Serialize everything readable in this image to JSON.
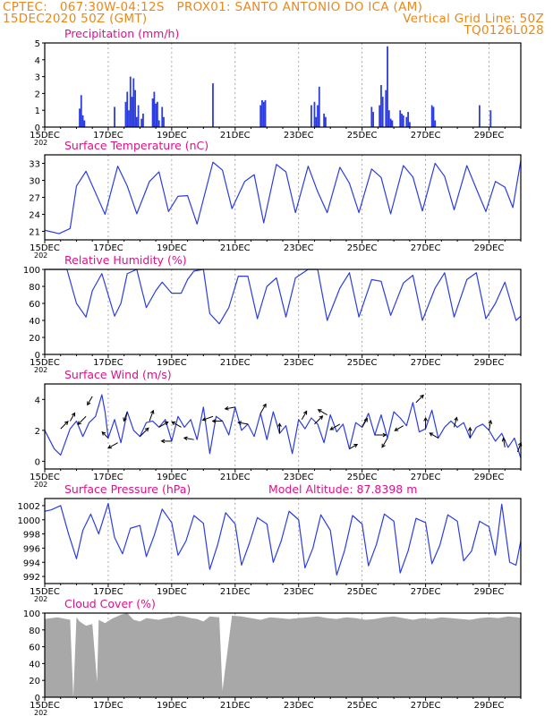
{
  "header": {
    "line1_left": "CPTEC:   067:30W-04:12S   PROX01: SANTO ANTONIO DO ICA (AM)",
    "line2_left": "15DEC2020 50Z (GMT)",
    "line2_right": "Vertical Grid Line: 50Z",
    "line3_right": "TQ0126L028"
  },
  "colors": {
    "header": "#e8891c",
    "panel_title": "#e0108a",
    "series": "#2b3de0",
    "cloud": "#a8a8a8",
    "grid": "#9a9a9a"
  },
  "x_axis": {
    "tick_labels": [
      "15DEC",
      "17DEC",
      "19DEC",
      "21DEC",
      "23DEC",
      "25DEC",
      "27DEC",
      "29DEC"
    ],
    "year_fragment": "202"
  },
  "chart_data": [
    {
      "type": "bar",
      "title": "Precipitation (mm/h)",
      "xlabel": "",
      "ylabel": "",
      "ylim": [
        0,
        5
      ],
      "yticks": [
        "0",
        "1",
        "2",
        "3",
        "4",
        "5"
      ],
      "x_unit": "days since 15DEC",
      "x": [
        1.1,
        1.15,
        1.2,
        1.25,
        2.2,
        2.55,
        2.6,
        2.65,
        2.7,
        2.75,
        2.8,
        2.85,
        2.9,
        2.95,
        3.05,
        3.1,
        3.4,
        3.45,
        3.5,
        3.55,
        3.6,
        3.7,
        3.75,
        5.3,
        6.8,
        6.85,
        6.9,
        6.95,
        8.4,
        8.5,
        8.55,
        8.6,
        8.65,
        8.8,
        8.85,
        10.3,
        10.35,
        10.55,
        10.6,
        10.65,
        10.75,
        10.8,
        10.85,
        10.9,
        10.95,
        11.2,
        11.25,
        11.3,
        11.4,
        11.45,
        11.5,
        12.2,
        12.25,
        12.3,
        13.7,
        14.05
      ],
      "values": [
        1.1,
        1.9,
        0.7,
        0.4,
        1.2,
        1.5,
        2.1,
        1.0,
        3.0,
        1.8,
        2.9,
        2.2,
        0.6,
        1.3,
        0.5,
        0.8,
        1.7,
        2.1,
        1.4,
        1.5,
        0.4,
        1.2,
        0.6,
        2.6,
        1.3,
        1.6,
        1.5,
        1.6,
        1.3,
        1.5,
        0.6,
        1.3,
        2.4,
        0.8,
        0.6,
        1.2,
        0.9,
        1.3,
        2.5,
        1.8,
        2.2,
        4.8,
        1.0,
        0.5,
        0.4,
        1.0,
        0.8,
        0.7,
        0.6,
        0.9,
        0.3,
        1.3,
        1.2,
        0.4,
        1.3,
        1.0
      ]
    },
    {
      "type": "line",
      "title": "Surface Temperature (nC)",
      "xlabel": "",
      "ylabel": "",
      "ylim": [
        19.5,
        34.5
      ],
      "yticks": [
        "21",
        "24",
        "27",
        "30",
        "33"
      ],
      "x_unit": "days since 15DEC",
      "x": [
        0.0,
        0.45,
        0.8,
        1.0,
        1.3,
        1.6,
        1.9,
        2.3,
        2.6,
        2.9,
        3.3,
        3.6,
        3.9,
        4.2,
        4.5,
        4.8,
        5.3,
        5.6,
        5.9,
        6.3,
        6.6,
        6.9,
        7.3,
        7.6,
        7.9,
        8.3,
        8.6,
        8.9,
        9.3,
        9.6,
        9.9,
        10.3,
        10.6,
        10.9,
        11.3,
        11.6,
        11.9,
        12.3,
        12.6,
        12.9,
        13.3,
        13.6,
        13.9,
        14.2,
        14.5,
        14.75,
        15.0
      ],
      "values": [
        21.2,
        20.6,
        21.5,
        29.0,
        31.6,
        27.8,
        24.0,
        32.5,
        29.0,
        24.1,
        29.8,
        31.5,
        24.5,
        27.2,
        27.3,
        22.3,
        33.2,
        31.8,
        25.0,
        29.8,
        31.0,
        22.5,
        32.8,
        31.5,
        24.3,
        32.5,
        28.0,
        24.3,
        32.3,
        29.5,
        24.3,
        32.0,
        30.5,
        24.1,
        32.6,
        30.6,
        24.6,
        33.0,
        30.7,
        24.8,
        32.6,
        28.5,
        24.5,
        29.8,
        28.8,
        25.2,
        33.5
      ]
    },
    {
      "type": "line",
      "title": "Relative Humidity (%)",
      "xlabel": "",
      "ylabel": "",
      "ylim": [
        0,
        100
      ],
      "yticks": [
        "0",
        "20",
        "40",
        "60",
        "80",
        "100"
      ],
      "x_unit": "days since 15DEC",
      "x": [
        0.0,
        0.4,
        0.7,
        1.0,
        1.3,
        1.5,
        1.8,
        2.2,
        2.4,
        2.6,
        2.9,
        3.2,
        3.5,
        3.7,
        4.0,
        4.3,
        4.5,
        4.7,
        5.0,
        5.2,
        5.5,
        5.8,
        6.1,
        6.4,
        6.7,
        7.0,
        7.3,
        7.6,
        7.9,
        8.3,
        8.6,
        8.9,
        9.3,
        9.6,
        9.9,
        10.3,
        10.6,
        10.9,
        11.3,
        11.6,
        11.9,
        12.3,
        12.6,
        12.9,
        13.3,
        13.6,
        13.9,
        14.2,
        14.5,
        14.85,
        15.0
      ],
      "values": [
        100,
        100,
        100,
        60,
        44,
        75,
        95,
        45,
        60,
        95,
        100,
        55,
        75,
        85,
        72,
        72,
        88,
        98,
        100,
        48,
        36,
        55,
        92,
        92,
        42,
        80,
        90,
        44,
        90,
        100,
        100,
        40,
        78,
        96,
        44,
        88,
        86,
        46,
        84,
        93,
        40,
        78,
        96,
        44,
        88,
        96,
        42,
        60,
        85,
        40,
        45
      ]
    },
    {
      "type": "line",
      "title": "Surface Wind (m/s)",
      "xlabel": "",
      "ylabel": "",
      "ylim": [
        -0.5,
        5
      ],
      "yticks": [
        "0",
        "2",
        "4"
      ],
      "x_unit": "days since 15DEC",
      "x": [
        0.0,
        0.3,
        0.5,
        0.8,
        1.0,
        1.2,
        1.4,
        1.6,
        1.8,
        1.9,
        2.0,
        2.2,
        2.4,
        2.6,
        2.8,
        3.0,
        3.2,
        3.4,
        3.6,
        3.8,
        4.0,
        4.2,
        4.4,
        4.6,
        4.8,
        5.0,
        5.2,
        5.4,
        5.6,
        5.8,
        6.0,
        6.2,
        6.4,
        6.6,
        6.8,
        7.0,
        7.2,
        7.4,
        7.6,
        7.8,
        8.0,
        8.2,
        8.4,
        8.6,
        8.8,
        9.0,
        9.2,
        9.4,
        9.6,
        9.8,
        10.0,
        10.2,
        10.4,
        10.6,
        10.8,
        11.0,
        11.2,
        11.4,
        11.6,
        11.8,
        12.0,
        12.2,
        12.4,
        12.6,
        12.8,
        13.0,
        13.2,
        13.4,
        13.6,
        13.8,
        14.0,
        14.2,
        14.4,
        14.6,
        14.8,
        15.0
      ],
      "values": [
        2.0,
        0.8,
        0.4,
        2.1,
        2.6,
        1.6,
        2.5,
        2.9,
        4.3,
        3.2,
        1.5,
        2.7,
        1.2,
        3.2,
        2.0,
        1.6,
        2.5,
        2.6,
        2.2,
        2.7,
        1.3,
        2.9,
        2.2,
        2.7,
        1.4,
        3.5,
        0.5,
        2.9,
        2.6,
        1.7,
        3.5,
        2.0,
        2.4,
        1.6,
        3.1,
        1.4,
        3.2,
        1.8,
        2.3,
        0.5,
        2.7,
        2.1,
        2.8,
        2.4,
        1.2,
        3.0,
        1.9,
        2.4,
        0.8,
        2.5,
        2.2,
        3.1,
        1.7,
        3.0,
        1.5,
        3.2,
        2.8,
        2.3,
        3.8,
        1.9,
        2.1,
        3.3,
        1.5,
        2.2,
        2.6,
        2.2,
        2.5,
        1.5,
        2.2,
        2.4,
        2.0,
        1.3,
        1.8,
        0.9,
        1.5,
        0.2
      ]
    },
    {
      "type": "line",
      "title": "Surface Pressure (hPa)",
      "xlabel": "",
      "ylabel": "",
      "annotation": "Model Altitude: 87.8398 m",
      "ylim": [
        991.0,
        1003.0
      ],
      "yticks": [
        "992",
        "994",
        "996",
        "998",
        "1000",
        "1002"
      ],
      "x_unit": "days since 15DEC",
      "x": [
        0.0,
        0.2,
        0.5,
        0.75,
        1.0,
        1.2,
        1.45,
        1.7,
        2.0,
        2.2,
        2.45,
        2.7,
        3.0,
        3.2,
        3.45,
        3.7,
        4.0,
        4.2,
        4.45,
        4.7,
        5.0,
        5.2,
        5.45,
        5.7,
        6.0,
        6.2,
        6.45,
        6.7,
        7.0,
        7.2,
        7.45,
        7.7,
        8.0,
        8.2,
        8.45,
        8.7,
        9.0,
        9.2,
        9.45,
        9.7,
        10.0,
        10.2,
        10.45,
        10.7,
        11.0,
        11.2,
        11.45,
        11.7,
        12.0,
        12.2,
        12.45,
        12.7,
        13.0,
        13.2,
        13.45,
        13.7,
        14.0,
        14.2,
        14.4,
        14.65,
        14.85,
        15.0
      ],
      "values": [
        1001.2,
        1001.4,
        1002.0,
        998.0,
        994.5,
        998.5,
        1000.8,
        998.0,
        1002.3,
        997.5,
        995.2,
        998.8,
        999.2,
        994.8,
        997.8,
        1001.5,
        999.6,
        995.0,
        997.0,
        1000.6,
        999.5,
        993.0,
        996.5,
        1001.0,
        999.4,
        993.6,
        996.7,
        1000.3,
        999.4,
        994.0,
        997.0,
        1001.2,
        1000.0,
        993.2,
        996.0,
        1000.7,
        998.5,
        992.2,
        995.7,
        1000.6,
        999.4,
        993.5,
        996.5,
        1000.8,
        999.8,
        992.5,
        995.6,
        1000.2,
        999.6,
        993.8,
        996.4,
        1000.7,
        999.8,
        994.2,
        995.6,
        999.8,
        999.0,
        995.0,
        1002.2,
        994.0,
        993.6,
        997.0
      ]
    },
    {
      "type": "area",
      "title": "Cloud Cover (%)",
      "xlabel": "",
      "ylabel": "",
      "ylim": [
        0,
        100
      ],
      "yticks": [
        "0",
        "20",
        "40",
        "60",
        "80",
        "100"
      ],
      "x_unit": "days since 15DEC",
      "x": [
        0.0,
        0.4,
        0.8,
        0.9,
        1.0,
        1.1,
        1.3,
        1.5,
        1.65,
        1.7,
        1.9,
        2.1,
        2.4,
        2.6,
        2.8,
        3.0,
        3.2,
        3.4,
        3.6,
        3.8,
        4.0,
        4.2,
        4.4,
        4.6,
        4.8,
        5.0,
        5.2,
        5.5,
        5.6,
        5.9,
        6.2,
        6.5,
        6.8,
        7.1,
        7.4,
        7.7,
        8.0,
        8.3,
        8.6,
        8.9,
        9.2,
        9.5,
        9.8,
        10.1,
        10.4,
        10.7,
        11.0,
        11.3,
        11.6,
        11.9,
        12.2,
        12.5,
        12.8,
        13.1,
        13.4,
        13.7,
        14.0,
        14.3,
        14.6,
        14.9,
        15.0
      ],
      "values": [
        93,
        95,
        92,
        0,
        95,
        90,
        85,
        87,
        18,
        92,
        88,
        93,
        98,
        100,
        92,
        90,
        94,
        93,
        92,
        94,
        95,
        97,
        96,
        94,
        93,
        90,
        96,
        95,
        8,
        97,
        96,
        94,
        92,
        95,
        94,
        93,
        94,
        95,
        96,
        94,
        93,
        95,
        94,
        92,
        93,
        95,
        96,
        94,
        92,
        94,
        93,
        95,
        94,
        93,
        92,
        94,
        95,
        94,
        96,
        95,
        94
      ]
    }
  ],
  "wind_vectors": {
    "x_unit": "days since 15DEC",
    "x": [
      0.5,
      0.8,
      1.3,
      1.5,
      2.0,
      2.3,
      2.6,
      3.0,
      3.3,
      3.6,
      4.0,
      4.3,
      4.7,
      5.3,
      5.6,
      6.0,
      6.4,
      6.8,
      7.4,
      8.1,
      8.5,
      8.9,
      9.3,
      9.6,
      10.0,
      10.4,
      10.8,
      11.3,
      11.7,
      12.0,
      12.4,
      12.9,
      13.4,
      14.0,
      14.5,
      14.9
    ],
    "magnitude": [
      2.2,
      1.8,
      2.6,
      2.0,
      1.5,
      2.4,
      2.0,
      2.8,
      2.5,
      2.2,
      2.1,
      2.3,
      2.0,
      2.4,
      2.0,
      2.1,
      2.0,
      2.3,
      2.0,
      1.9,
      2.6,
      2.2,
      2.4,
      1.7,
      2.1,
      2.5,
      2.3,
      2.0,
      2.2,
      2.4,
      2.0,
      2.1,
      2.2,
      2.0,
      1.8,
      2.0
    ],
    "direction_deg": [
      45,
      30,
      225,
      210,
      315,
      240,
      200,
      45,
      20,
      60,
      270,
      300,
      280,
      250,
      270,
      260,
      280,
      30,
      0,
      30,
      45,
      300,
      240,
      60,
      30,
      90,
      210,
      240,
      45,
      0,
      300,
      15,
      0,
      10,
      350,
      20
    ]
  }
}
